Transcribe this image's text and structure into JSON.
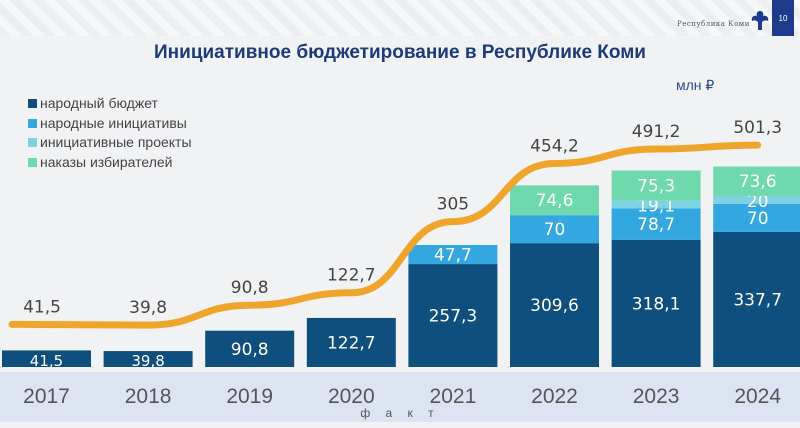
{
  "header": {
    "brand": "Республика Коми",
    "page_number": "10"
  },
  "colors": {
    "narodny_budget": "#0e4f7d",
    "narodnye_initsiativy": "#33a7df",
    "initsiativnye_proekty": "#7fd2e2",
    "nakazy": "#6fd9ae",
    "total_line": "#efa52b",
    "title": "#1d3b7a"
  },
  "chart_data": {
    "type": "bar",
    "stacked": true,
    "title": "Инициативное бюджетирование в Республике Коми",
    "unit": "млн ₽",
    "xlabel": "ф а к т",
    "categories": [
      "2017",
      "2018",
      "2019",
      "2020",
      "2021",
      "2022",
      "2023",
      "2024"
    ],
    "series": [
      {
        "name": "народный бюджет",
        "values": [
          41.5,
          39.8,
          90.8,
          122.7,
          257.3,
          309.6,
          318.1,
          337.7
        ],
        "labels": [
          "41,5",
          "39,8",
          "90,8",
          "122,7",
          "257,3",
          "309,6",
          "318,1",
          "337,7"
        ]
      },
      {
        "name": "народные инициативы",
        "values": [
          0,
          0,
          0,
          0,
          47.7,
          70,
          78.7,
          70
        ],
        "labels": [
          "",
          "",
          "",
          "",
          "47,7",
          "70",
          "78,7",
          "70"
        ]
      },
      {
        "name": "инициативные проекты",
        "values": [
          0,
          0,
          0,
          0,
          0,
          0,
          19.1,
          20
        ],
        "labels": [
          "",
          "",
          "",
          "",
          "",
          "",
          "19,1",
          "20"
        ]
      },
      {
        "name": "наказы избирателей",
        "values": [
          0,
          0,
          0,
          0,
          0,
          74.6,
          75.3,
          73.6
        ],
        "labels": [
          "",
          "",
          "",
          "",
          "",
          "74,6",
          "75,3",
          "73,6"
        ]
      }
    ],
    "totals": {
      "values": [
        41.5,
        39.8,
        90.8,
        122.7,
        305,
        454.2,
        491.2,
        501.3
      ],
      "labels": [
        "41,5",
        "39,8",
        "90,8",
        "122,7",
        "305",
        "454,2",
        "491,2",
        "501,3"
      ]
    },
    "legend_position": "top-left",
    "grid": false
  }
}
